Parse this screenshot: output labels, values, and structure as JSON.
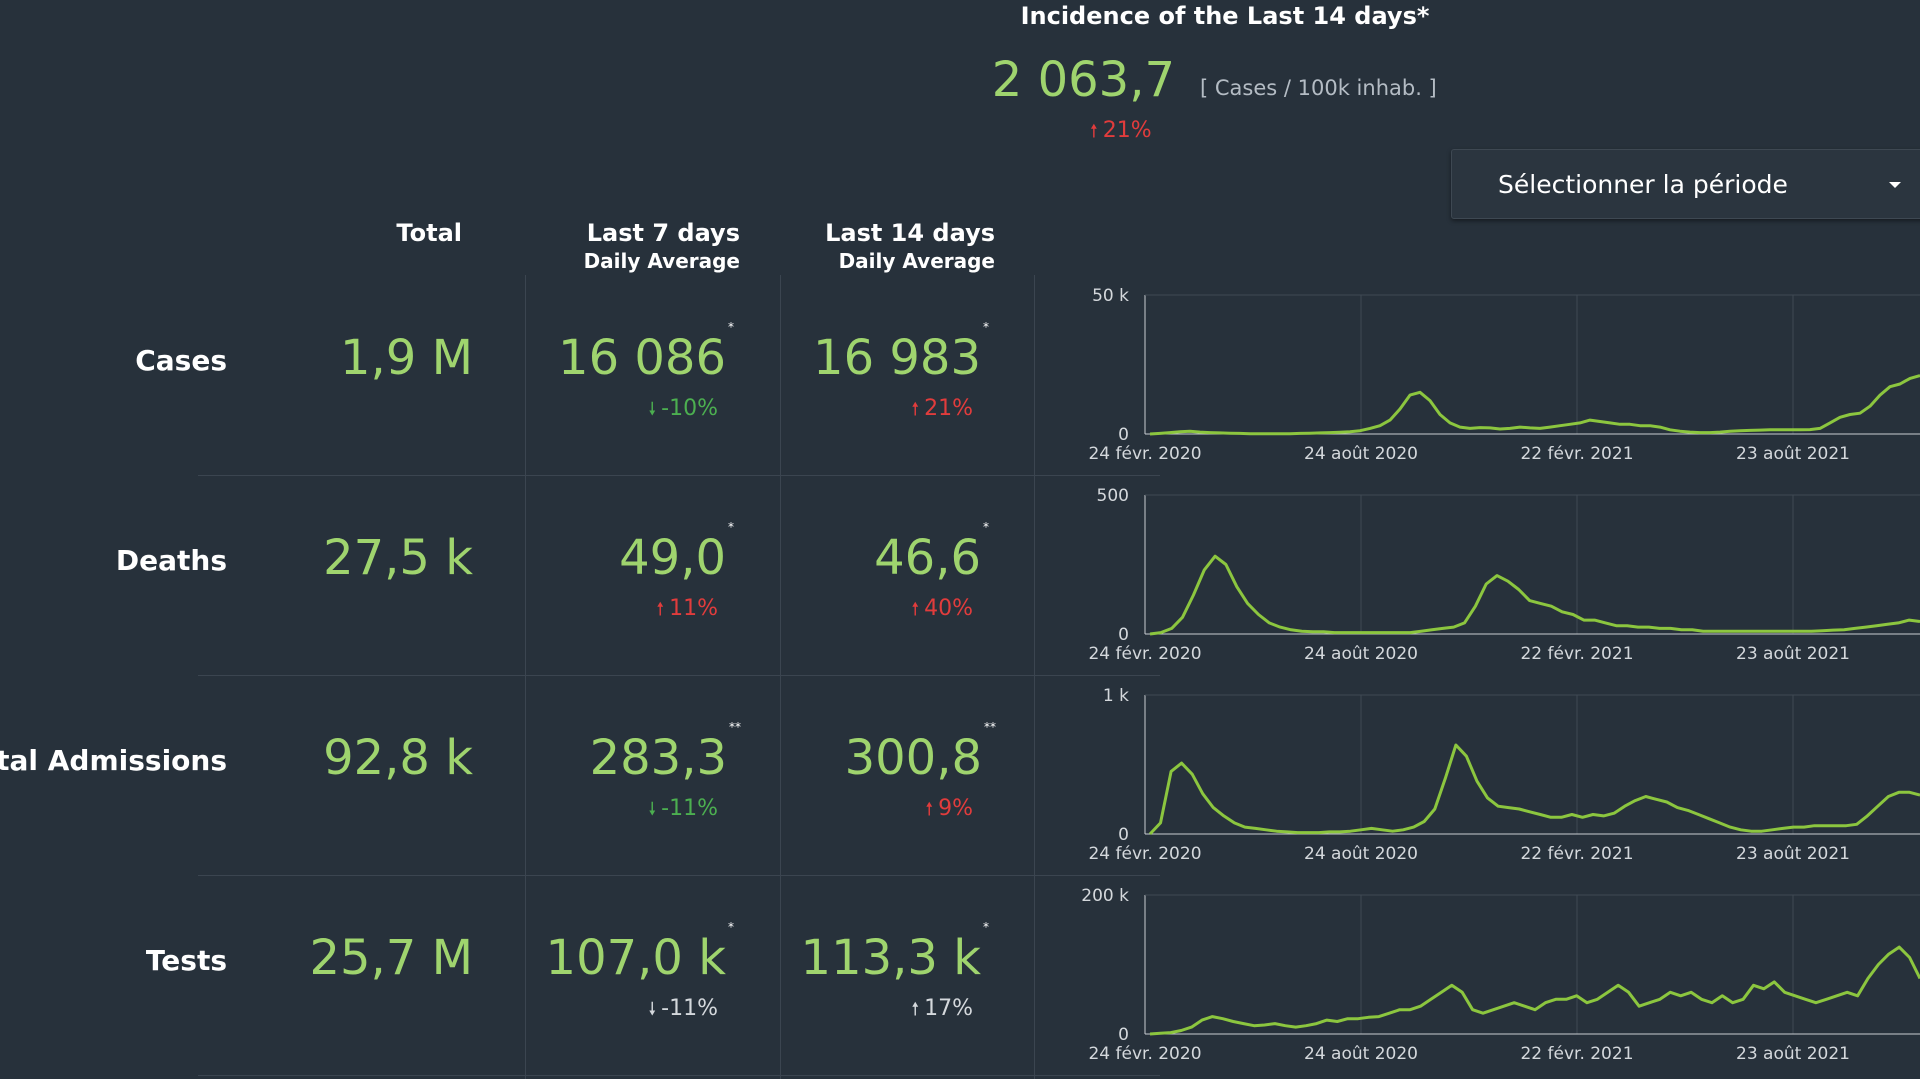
{
  "incidence": {
    "title": "Incidence of the Last 14 days*",
    "value": "2 063,7",
    "unit": "[ Cases / 100k inhab. ]",
    "change": "21%",
    "change_dir": "up"
  },
  "period_select": {
    "label": "Sélectionner la période",
    "icon": "caret-down-icon"
  },
  "columns": {
    "total": "Total",
    "last7": "Last 7 days",
    "last7_sub": "Daily Average",
    "last14": "Last 14 days",
    "last14_sub": "Daily Average"
  },
  "rows": [
    {
      "label": "Cases",
      "total": "1,9 M",
      "last7": "16 086",
      "last7_mark": "*",
      "last7_change": "-10%",
      "last7_dir": "down",
      "last14": "16 983",
      "last14_mark": "*",
      "last14_change": "21%",
      "last14_dir": "up"
    },
    {
      "label": "Deaths",
      "total": "27,5 k",
      "last7": "49,0",
      "last7_mark": "*",
      "last7_change": "11%",
      "last7_dir": "up",
      "last14": "46,6",
      "last14_mark": "*",
      "last14_change": "40%",
      "last14_dir": "up"
    },
    {
      "label": "ospital Admissions",
      "total": "92,8 k",
      "last7": "283,3",
      "last7_mark": "**",
      "last7_change": "-11%",
      "last7_dir": "down",
      "last14": "300,8",
      "last14_mark": "**",
      "last14_change": "9%",
      "last14_dir": "up"
    },
    {
      "label": "Tests",
      "total": "25,7 M",
      "last7": "107,0 k",
      "last7_mark": "*",
      "last7_change": "-11%",
      "last7_dir": "neutral",
      "last14": "113,3 k",
      "last14_mark": "*",
      "last14_change": "17%",
      "last14_dir": "neutral"
    }
  ],
  "colors": {
    "value": "#9fd46e",
    "up": "#e13c3c",
    "down": "#4caf50",
    "neutral": "#d4d8dc",
    "line": "#8cc63f"
  },
  "chart_data": [
    {
      "type": "line",
      "name": "Cases",
      "ymax_label": "50 k",
      "ymin_label": "0",
      "ylim": [
        0,
        50000
      ],
      "xticks": [
        "24 févr. 2020",
        "24 août 2020",
        "22 févr. 2021",
        "23 août 2021"
      ],
      "y": [
        0,
        200,
        500,
        800,
        1000,
        700,
        500,
        400,
        300,
        200,
        100,
        100,
        100,
        100,
        100,
        200,
        300,
        400,
        500,
        600,
        800,
        1200,
        2000,
        3000,
        5000,
        9000,
        14000,
        15000,
        12000,
        7000,
        4000,
        2500,
        2000,
        2300,
        2200,
        1800,
        2000,
        2500,
        2200,
        2000,
        2500,
        3000,
        3500,
        4000,
        5000,
        4500,
        4000,
        3500,
        3500,
        3000,
        3000,
        2500,
        1500,
        1000,
        700,
        500,
        500,
        700,
        1000,
        1200,
        1300,
        1400,
        1500,
        1500,
        1500,
        1500,
        1600,
        2000,
        4000,
        6000,
        7000,
        7500,
        10000,
        14000,
        17000,
        18000,
        20000,
        21000
      ]
    },
    {
      "type": "line",
      "name": "Deaths",
      "ymax_label": "500",
      "ymin_label": "0",
      "ylim": [
        0,
        500
      ],
      "y": [
        0,
        5,
        20,
        60,
        140,
        230,
        280,
        250,
        170,
        110,
        70,
        40,
        25,
        15,
        10,
        8,
        8,
        5,
        5,
        5,
        5,
        5,
        5,
        5,
        5,
        10,
        15,
        20,
        25,
        40,
        100,
        180,
        210,
        190,
        160,
        120,
        110,
        100,
        80,
        70,
        50,
        50,
        40,
        30,
        30,
        25,
        25,
        20,
        20,
        15,
        15,
        10,
        10,
        10,
        10,
        10,
        10,
        10,
        10,
        10,
        10,
        10,
        12,
        14,
        15,
        20,
        25,
        30,
        35,
        40,
        50,
        45
      ]
    },
    {
      "type": "line",
      "name": "Hospital Admissions",
      "ymax_label": "1 k",
      "ymin_label": "0",
      "ylim": [
        0,
        1000
      ],
      "y": [
        0,
        80,
        450,
        510,
        430,
        290,
        190,
        130,
        80,
        50,
        40,
        30,
        20,
        15,
        10,
        10,
        10,
        15,
        15,
        20,
        30,
        40,
        30,
        20,
        30,
        50,
        90,
        180,
        400,
        640,
        560,
        380,
        260,
        200,
        190,
        180,
        160,
        140,
        120,
        120,
        140,
        120,
        140,
        130,
        150,
        200,
        240,
        270,
        250,
        230,
        190,
        170,
        140,
        110,
        80,
        50,
        30,
        20,
        20,
        30,
        40,
        50,
        50,
        60,
        60,
        60,
        60,
        70,
        130,
        200,
        270,
        300,
        300,
        280
      ]
    },
    {
      "type": "line",
      "name": "Tests",
      "ymax_label": "200 k",
      "ymin_label": "0",
      "ylim": [
        0,
        200000
      ],
      "y": [
        0,
        1000,
        2000,
        5000,
        10000,
        20000,
        25000,
        22000,
        18000,
        15000,
        12000,
        13000,
        15000,
        12000,
        10000,
        12000,
        15000,
        20000,
        18000,
        22000,
        22000,
        24000,
        25000,
        30000,
        35000,
        35000,
        40000,
        50000,
        60000,
        70000,
        60000,
        35000,
        30000,
        35000,
        40000,
        45000,
        40000,
        35000,
        45000,
        50000,
        50000,
        55000,
        45000,
        50000,
        60000,
        70000,
        60000,
        40000,
        45000,
        50000,
        60000,
        55000,
        60000,
        50000,
        45000,
        55000,
        45000,
        50000,
        70000,
        65000,
        75000,
        60000,
        55000,
        50000,
        45000,
        50000,
        55000,
        60000,
        55000,
        80000,
        100000,
        115000,
        125000,
        110000,
        80000
      ]
    }
  ]
}
